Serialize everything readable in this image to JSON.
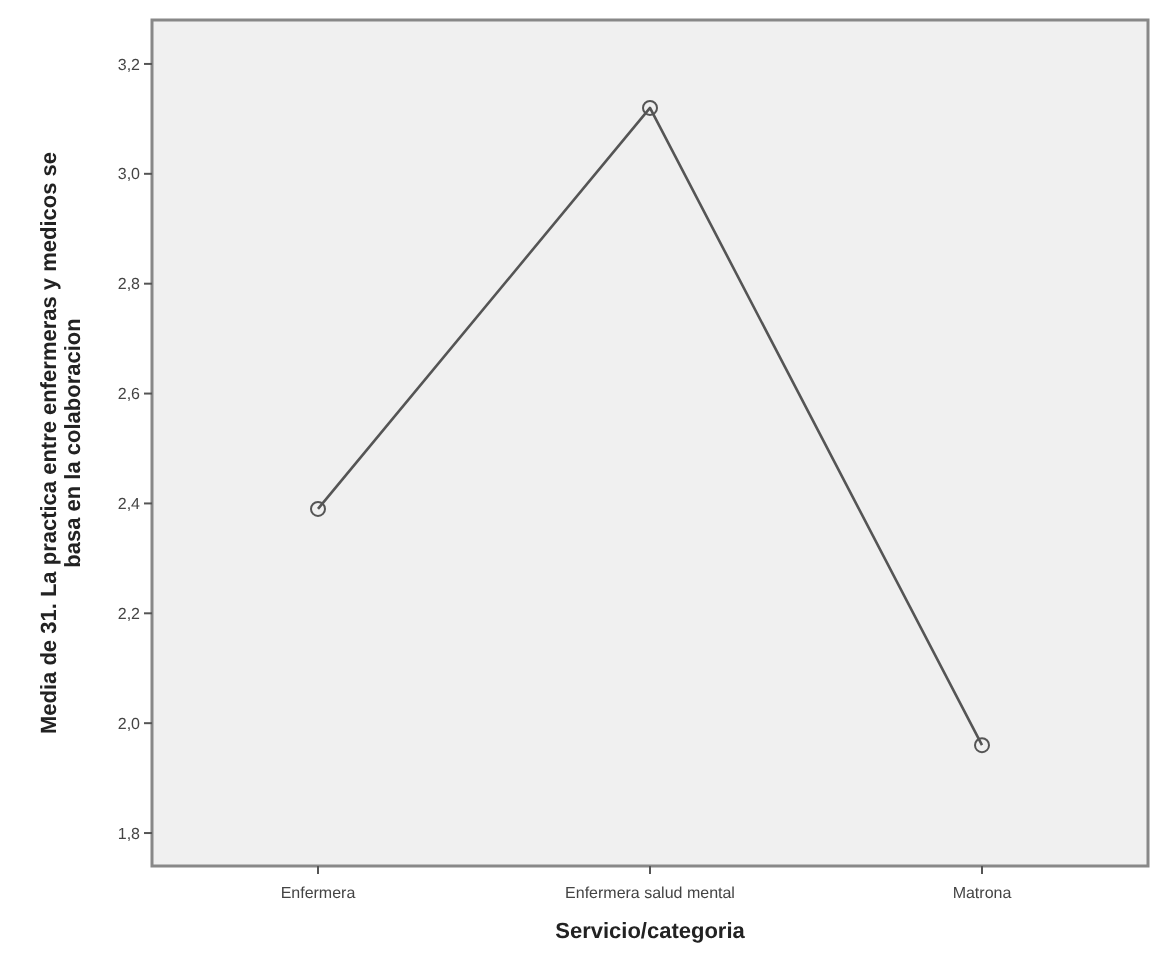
{
  "chart_data": {
    "type": "line",
    "xlabel": "Servicio/categoria",
    "ylabel": "Media de 31. La practica entre enfermeras y medicos se basa en la colaboracion",
    "categories": [
      "Enfermera",
      "Enfermera salud mental",
      "Matrona"
    ],
    "series": [
      {
        "color": "#555555",
        "values": [
          2.39,
          3.12,
          1.96
        ]
      }
    ],
    "marker": "circle",
    "grid": false,
    "ylim": [
      1.74,
      3.28
    ],
    "yticks": [
      {
        "value": 1.8,
        "label": "1,8"
      },
      {
        "value": 2.0,
        "label": "2,0"
      },
      {
        "value": 2.2,
        "label": "2,2"
      },
      {
        "value": 2.4,
        "label": "2,4"
      },
      {
        "value": 2.6,
        "label": "2,6"
      },
      {
        "value": 2.8,
        "label": "2,8"
      },
      {
        "value": 3.0,
        "label": "3,0"
      },
      {
        "value": 3.2,
        "label": "3,2"
      }
    ]
  }
}
